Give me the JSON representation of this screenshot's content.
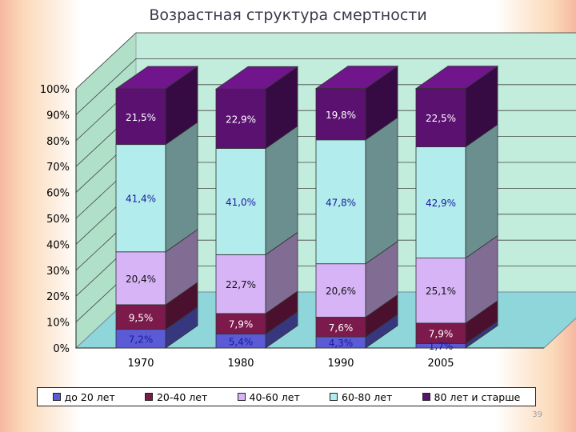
{
  "title": "Возрастная структура смертности",
  "page_number": "39",
  "colors": {
    "background": "#c2ecdc",
    "floor": "#8fd6da",
    "side_wall": "#b0e0c8"
  },
  "chart_data": {
    "type": "bar",
    "stacked": true,
    "three_d": true,
    "title": "Возрастная структура смертности",
    "categories": [
      "1970",
      "1980",
      "1990",
      "2005"
    ],
    "ylim": [
      0,
      100
    ],
    "y_ticks": [
      "0%",
      "10%",
      "20%",
      "30%",
      "40%",
      "50%",
      "60%",
      "70%",
      "80%",
      "90%",
      "100%"
    ],
    "grid": true,
    "legend_position": "bottom",
    "series": [
      {
        "name": "до 20 лет",
        "color": "#5b5bd6",
        "values": [
          7.2,
          5.4,
          4.3,
          1.7
        ],
        "labels": [
          "7,2%",
          "5,4%",
          "4,3%",
          "1,7%"
        ]
      },
      {
        "name": "20-40 лет",
        "color": "#7b1a4b",
        "values": [
          9.5,
          7.9,
          7.6,
          7.9
        ],
        "labels": [
          "9,5%",
          "7,9%",
          "7,6%",
          "7,9%"
        ]
      },
      {
        "name": "40-60 лет",
        "color": "#d7b4f6",
        "values": [
          20.4,
          22.7,
          20.6,
          25.1
        ],
        "labels": [
          "20,4%",
          "22,7%",
          "20,6%",
          "25,1%"
        ]
      },
      {
        "name": "60-80 лет",
        "color": "#b3ecec",
        "values": [
          41.4,
          41.0,
          47.8,
          42.9
        ],
        "labels": [
          "41,4%",
          "41,0%",
          "47,8%",
          "42,9%"
        ]
      },
      {
        "name": "80 лет и старше",
        "color": "#5a1170",
        "values": [
          21.5,
          22.9,
          19.8,
          22.5
        ],
        "labels": [
          "21,5%",
          "22,9%",
          "19,8%",
          "22,5%"
        ]
      }
    ]
  }
}
